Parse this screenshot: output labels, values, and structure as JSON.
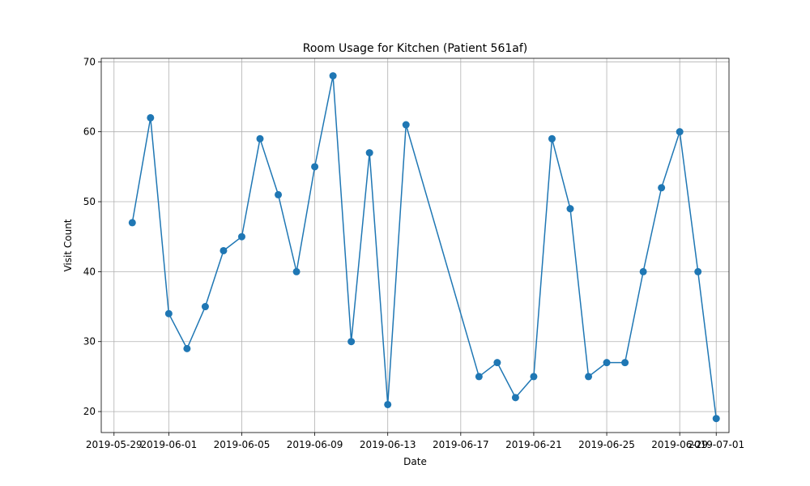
{
  "chart_data": {
    "type": "line",
    "title": "Room Usage for Kitchen (Patient 561af)",
    "xlabel": "Date",
    "ylabel": "Visit Count",
    "xlim": [
      "2019-05-29",
      "2019-07-01"
    ],
    "ylim": [
      17,
      70.5
    ],
    "x_ticks": [
      "2019-05-29",
      "2019-06-01",
      "2019-06-05",
      "2019-06-09",
      "2019-06-13",
      "2019-06-17",
      "2019-06-21",
      "2019-06-25",
      "2019-06-29",
      "2019-07-01"
    ],
    "y_ticks": [
      20,
      30,
      40,
      50,
      60,
      70
    ],
    "grid": true,
    "color": "#1f77b4",
    "series": [
      {
        "x": [
          "2019-05-30",
          "2019-05-31",
          "2019-06-01",
          "2019-06-02",
          "2019-06-03",
          "2019-06-04",
          "2019-06-05",
          "2019-06-06",
          "2019-06-07",
          "2019-06-08",
          "2019-06-09",
          "2019-06-10",
          "2019-06-11",
          "2019-06-12",
          "2019-06-13",
          "2019-06-14",
          "2019-06-18",
          "2019-06-19",
          "2019-06-20",
          "2019-06-21",
          "2019-06-22",
          "2019-06-23",
          "2019-06-24",
          "2019-06-25",
          "2019-06-26",
          "2019-06-27",
          "2019-06-28",
          "2019-06-29",
          "2019-06-30",
          "2019-07-01"
        ],
        "values": [
          47,
          62,
          34,
          29,
          35,
          43,
          45,
          59,
          51,
          40,
          55,
          68,
          30,
          57,
          21,
          61,
          25,
          27,
          22,
          25,
          59,
          49,
          25,
          27,
          27,
          40,
          52,
          60,
          40,
          19
        ]
      }
    ]
  }
}
